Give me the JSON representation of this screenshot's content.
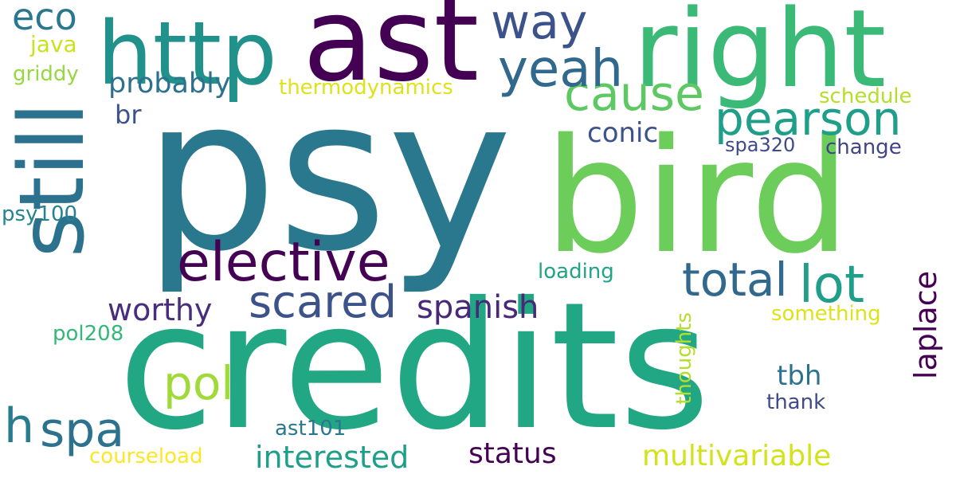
{
  "words": [
    {
      "id": "psy",
      "text": "psy",
      "color": "#2a788e"
    },
    {
      "id": "credits",
      "text": "credits",
      "color": "#22a785"
    },
    {
      "id": "bird",
      "text": "bird",
      "color": "#6ccd5a"
    },
    {
      "id": "right",
      "text": "right",
      "color": "#3aba76"
    },
    {
      "id": "ast",
      "text": "ast",
      "color": "#440154"
    },
    {
      "id": "http",
      "text": "http",
      "color": "#21918c"
    },
    {
      "id": "still",
      "text": "still",
      "color": "#2c728e"
    },
    {
      "id": "elective",
      "text": "elective",
      "color": "#440154"
    },
    {
      "id": "pearson",
      "text": "pearson",
      "color": "#1f9e89"
    },
    {
      "id": "cause",
      "text": "cause",
      "color": "#5ec962"
    },
    {
      "id": "yeah",
      "text": "yeah",
      "color": "#31688e"
    },
    {
      "id": "way",
      "text": "way",
      "color": "#3b528b"
    },
    {
      "id": "lot",
      "text": "lot",
      "color": "#1f9e89"
    },
    {
      "id": "total",
      "text": "total",
      "color": "#31688e"
    },
    {
      "id": "scared",
      "text": "scared",
      "color": "#3b528b"
    },
    {
      "id": "pol",
      "text": "pol",
      "color": "#a0da39"
    },
    {
      "id": "spa",
      "text": "spa",
      "color": "#2c728e"
    },
    {
      "id": "eco",
      "text": "eco",
      "color": "#2a788e"
    },
    {
      "id": "h",
      "text": "h",
      "color": "#287c8e"
    },
    {
      "id": "spanish",
      "text": "spanish",
      "color": "#482878"
    },
    {
      "id": "worthy",
      "text": "worthy",
      "color": "#472d7b"
    },
    {
      "id": "probably",
      "text": "probably",
      "color": "#2c728e"
    },
    {
      "id": "interested",
      "text": "interested",
      "color": "#1f9e89"
    },
    {
      "id": "multivariable",
      "text": "multivariable",
      "color": "#d2e21b"
    },
    {
      "id": "status",
      "text": "status",
      "color": "#440154"
    },
    {
      "id": "laplace",
      "text": "laplace",
      "color": "#440154"
    },
    {
      "id": "conic",
      "text": "conic",
      "color": "#3b528b"
    },
    {
      "id": "tbh",
      "text": "tbh",
      "color": "#2c728e"
    },
    {
      "id": "thermodynamics",
      "text": "thermodynamics",
      "color": "#dde318"
    },
    {
      "id": "br",
      "text": "br",
      "color": "#3b528b"
    },
    {
      "id": "java",
      "text": "java",
      "color": "#cae11f"
    },
    {
      "id": "griddy",
      "text": "griddy",
      "color": "#95d840"
    },
    {
      "id": "psy100",
      "text": "psy100",
      "color": "#26828e"
    },
    {
      "id": "pol208",
      "text": "pol208",
      "color": "#35b779"
    },
    {
      "id": "ast101",
      "text": "ast101",
      "color": "#2a788e"
    },
    {
      "id": "courseload",
      "text": "courseload",
      "color": "#fde725"
    },
    {
      "id": "thank",
      "text": "thank",
      "color": "#3e4a89"
    },
    {
      "id": "thoughts",
      "text": "thoughts",
      "color": "#b5de2b"
    },
    {
      "id": "loading",
      "text": "loading",
      "color": "#20a386"
    },
    {
      "id": "something",
      "text": "something",
      "color": "#dde318"
    },
    {
      "id": "change",
      "text": "change",
      "color": "#414487"
    },
    {
      "id": "spa320",
      "text": "spa320",
      "color": "#3e4a89"
    },
    {
      "id": "schedule",
      "text": "schedule",
      "color": "#b5de2b"
    }
  ]
}
